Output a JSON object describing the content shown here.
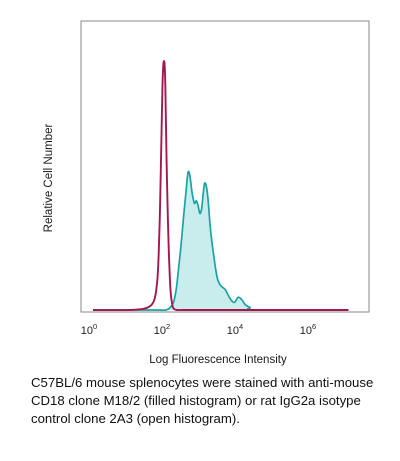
{
  "chart_data": {
    "type": "area",
    "title": "",
    "xlabel": "Log Fluorescence Intensity",
    "ylabel": "Relative Cell Number",
    "xscale": "log",
    "xlim": [
      1,
      10000000
    ],
    "ylim": [
      0,
      100
    ],
    "grid": false,
    "xticks": [
      {
        "base": "10",
        "exp": "0",
        "value": 1
      },
      {
        "base": "10",
        "exp": "2",
        "value": 100
      },
      {
        "base": "10",
        "exp": "4",
        "value": 10000
      },
      {
        "base": "10",
        "exp": "6",
        "value": 1000000
      }
    ],
    "series": [
      {
        "name": "rat IgG2a isotype control clone 2A3 (open histogram)",
        "style": "open",
        "color": "#a3174f",
        "x": [
          1,
          10,
          25,
          40,
          50,
          58,
          63,
          68,
          72,
          76,
          80,
          84,
          88,
          92,
          96,
          100,
          106,
          113,
          120,
          128,
          136,
          145,
          155,
          170,
          200,
          300,
          1000,
          10000,
          10000000
        ],
        "y": [
          0,
          0,
          0.5,
          2,
          5,
          12,
          22,
          38,
          55,
          72,
          88,
          96,
          98,
          96,
          88,
          72,
          52,
          35,
          22,
          12,
          6,
          3,
          1,
          0.3,
          0,
          0,
          0,
          0,
          0
        ]
      },
      {
        "name": "anti-mouse CD18 clone M18/2 (filled histogram)",
        "style": "filled",
        "color": "#1aa3a3",
        "fill": "#c9eded",
        "x": [
          1,
          50,
          100,
          130,
          160,
          190,
          220,
          260,
          300,
          350,
          400,
          450,
          520,
          600,
          680,
          760,
          850,
          950,
          1050,
          1150,
          1300,
          1450,
          1600,
          1800,
          2050,
          2300,
          2600,
          3000,
          3500,
          4200,
          5000,
          6000,
          7500,
          9500,
          12000,
          15000,
          20000,
          30000,
          10000000
        ],
        "y": [
          0,
          0,
          0,
          1,
          3,
          8,
          16,
          26,
          36,
          46,
          54,
          53,
          46,
          42,
          43,
          41,
          38,
          40,
          46,
          50,
          48,
          42,
          34,
          27,
          21,
          16,
          12,
          10,
          9,
          8,
          6,
          4,
          3,
          5,
          4,
          2,
          1,
          0,
          0
        ]
      }
    ],
    "caption": "C57BL/6 mouse splenocytes were stained with anti-mouse CD18 clone M18/2 (filled histogram) or rat IgG2a isotype control clone 2A3 (open histogram)."
  }
}
